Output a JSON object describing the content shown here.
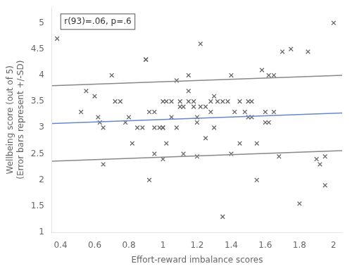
{
  "chart_data": {
    "type": "scatter",
    "xlabel": "Effort-reward imbalance scores",
    "ylabel": "Wellbeing score (out of 5)\n(Error bars represent +/-SD)",
    "annotation": "r(93)=.06, p=.6",
    "xlim": [
      0.35,
      2.05
    ],
    "ylim": [
      1.0,
      5.3
    ],
    "xticks": [
      0.4,
      0.6,
      0.8,
      1.0,
      1.2,
      1.4,
      1.6,
      1.8,
      2.0
    ],
    "yticks": [
      1,
      1.5,
      2,
      2.5,
      3,
      3.5,
      4,
      4.5,
      5
    ],
    "grid": false,
    "series": [
      {
        "type": "scatter",
        "marker": "x",
        "color": "#666666",
        "x": [
          0.38,
          0.52,
          0.55,
          0.6,
          0.62,
          0.63,
          0.65,
          0.65,
          0.7,
          0.72,
          0.75,
          0.78,
          0.8,
          0.82,
          0.85,
          0.88,
          0.9,
          0.9,
          0.92,
          0.92,
          0.95,
          0.95,
          0.95,
          0.98,
          1.0,
          1.0,
          1.0,
          1.0,
          1.02,
          1.02,
          1.05,
          1.05,
          1.08,
          1.08,
          1.1,
          1.1,
          1.12,
          1.12,
          1.15,
          1.15,
          1.15,
          1.18,
          1.18,
          1.2,
          1.2,
          1.2,
          1.22,
          1.22,
          1.25,
          1.25,
          1.28,
          1.28,
          1.3,
          1.3,
          1.32,
          1.35,
          1.35,
          1.38,
          1.4,
          1.4,
          1.42,
          1.45,
          1.45,
          1.48,
          1.5,
          1.5,
          1.52,
          1.52,
          1.55,
          1.55,
          1.58,
          1.6,
          1.6,
          1.62,
          1.62,
          1.65,
          1.65,
          1.68,
          1.7,
          1.75,
          1.8,
          1.85,
          1.9,
          1.92,
          1.95,
          1.95,
          2.0
        ],
        "values": [
          4.7,
          3.3,
          3.7,
          3.6,
          3.2,
          3.1,
          3.0,
          2.3,
          4.0,
          3.5,
          3.5,
          3.1,
          3.2,
          2.7,
          3.0,
          3.0,
          4.3,
          4.3,
          2.0,
          3.3,
          3.0,
          2.5,
          3.3,
          3.0,
          3.5,
          3.0,
          3.0,
          2.4,
          2.7,
          3.5,
          3.5,
          3.2,
          3.9,
          3.0,
          3.4,
          3.5,
          3.4,
          2.5,
          4.0,
          3.7,
          3.5,
          3.4,
          3.5,
          3.2,
          2.45,
          3.1,
          3.4,
          4.6,
          2.8,
          3.4,
          3.3,
          3.5,
          3.6,
          3.0,
          3.5,
          1.3,
          3.5,
          3.5,
          2.5,
          4.0,
          3.3,
          3.5,
          2.7,
          3.3,
          3.2,
          3.5,
          3.5,
          3.2,
          2.0,
          2.7,
          4.1,
          3.3,
          3.1,
          4.0,
          3.1,
          4.0,
          3.3,
          2.45,
          4.45,
          4.5,
          1.55,
          4.45,
          2.4,
          2.3,
          2.45,
          1.9,
          5.0
        ]
      },
      {
        "type": "line",
        "color": "#6688cc",
        "x": [
          0.35,
          2.05
        ],
        "values": [
          3.08,
          3.28
        ]
      },
      {
        "type": "line",
        "color": "#888888",
        "x": [
          0.35,
          2.05
        ],
        "values": [
          3.8,
          4.0
        ]
      },
      {
        "type": "line",
        "color": "#888888",
        "x": [
          0.35,
          2.05
        ],
        "values": [
          2.36,
          2.56
        ]
      }
    ]
  }
}
